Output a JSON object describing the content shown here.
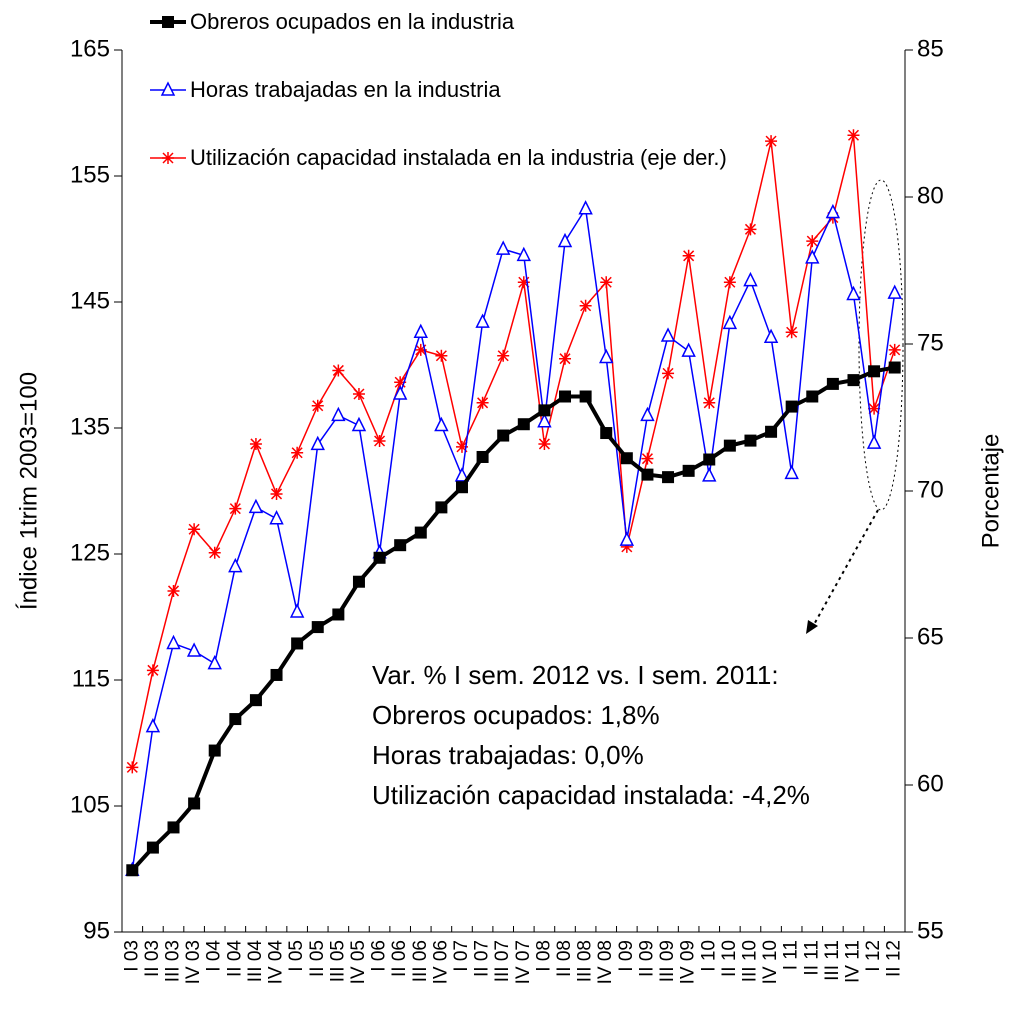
{
  "chart_data": {
    "type": "line",
    "y_label": "Índice 1trim 2003=100",
    "y2_label": "Porcentaje",
    "categories": [
      "I 03",
      "II 03",
      "III 03",
      "IV 03",
      "I 04",
      "II 04",
      "III 04",
      "IV 04",
      "I 05",
      "II 05",
      "III 05",
      "IV 05",
      "I 06",
      "II 06",
      "III 06",
      "IV 06",
      "I 07",
      "II 07",
      "III 07",
      "IV 07",
      "I 08",
      "II 08",
      "III 08",
      "IV 08",
      "I 09",
      "II 09",
      "III 09",
      "IV 09",
      "I 10",
      "II 10",
      "III 10",
      "IV 10",
      "I 11",
      "II 11",
      "III 11",
      "IV 11",
      "I 12",
      "II 12"
    ],
    "series": [
      {
        "name": "Obreros ocupados en la industria",
        "color": "#000000",
        "marker": "square",
        "values": [
          99.9,
          101.7,
          103.3,
          105.2,
          109.4,
          111.9,
          113.4,
          115.4,
          117.9,
          119.2,
          120.2,
          122.8,
          124.7,
          125.7,
          126.7,
          128.7,
          130.3,
          132.7,
          134.4,
          135.3,
          136.4,
          137.5,
          137.5,
          134.6,
          132.6,
          131.3,
          131.1,
          131.6,
          132.5,
          133.6,
          134.0,
          134.7,
          136.7,
          137.5,
          138.5,
          138.8,
          139.5,
          139.8
        ]
      },
      {
        "name": "Horas trabajadas en la industria",
        "color": "#0000ff",
        "marker": "triangle",
        "values": [
          99.9,
          111.3,
          117.9,
          117.3,
          116.3,
          124.0,
          128.7,
          127.8,
          120.4,
          133.7,
          136.0,
          135.2,
          125.1,
          137.7,
          142.6,
          135.2,
          131.2,
          143.4,
          149.2,
          148.7,
          135.5,
          149.8,
          152.4,
          140.6,
          126.1,
          136.0,
          142.3,
          141.1,
          131.2,
          143.3,
          146.7,
          142.2,
          131.4,
          148.5,
          152.1,
          145.6,
          133.8,
          145.7
        ]
      },
      {
        "name": "Utilización capacidad instalada en la industria (eje der.)",
        "color": "#ff0000",
        "marker": "asterisk",
        "axis": "y2",
        "values": [
          60.6,
          63.9,
          66.6,
          68.7,
          67.9,
          69.4,
          71.6,
          69.9,
          71.3,
          72.9,
          74.1,
          73.3,
          71.7,
          73.7,
          74.8,
          74.6,
          71.5,
          73.0,
          74.6,
          77.1,
          71.6,
          74.5,
          76.3,
          77.1,
          68.1,
          71.1,
          74.0,
          78.0,
          73.0,
          77.1,
          78.9,
          81.9,
          75.4,
          78.5,
          79.3,
          82.1,
          72.8,
          74.8
        ]
      }
    ],
    "ylim": [
      95,
      165
    ],
    "yticks": [
      95,
      105,
      115,
      125,
      135,
      145,
      155,
      165
    ],
    "y2lim": [
      55,
      85
    ],
    "y2ticks": [
      55,
      60,
      65,
      70,
      75,
      80,
      85
    ],
    "grid": false,
    "annotation": [
      "Var. % I sem. 2012 vs. I sem. 2011:",
      "Obreros ocupados: 1,8%",
      "Horas trabajadas: 0,0%",
      "Utilización capacidad instalada: -4,2%"
    ]
  }
}
